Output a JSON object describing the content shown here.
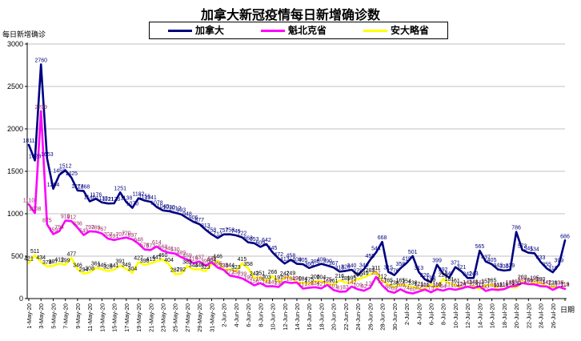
{
  "title": "加拿大新冠疫情每日新增确诊数",
  "y_axis_title": "每日新增确诊",
  "x_axis_title": "日期",
  "legend": {
    "canada_label": "加拿大",
    "quebec_label": "魁北克省",
    "ontario_label": "安大略省"
  },
  "colors": {
    "canada": "#000080",
    "quebec": "#FF00FF",
    "ontario": "#FFFF00",
    "canada_label": "#000080",
    "quebec_label": "#993366",
    "ontario_label": "#000000",
    "gridline": "#c0c0c0",
    "axis": "#000000",
    "background": "#ffffff"
  },
  "chart_data": {
    "type": "line",
    "title": "加拿大新冠疫情每日新增确诊数",
    "xlabel": "日期",
    "ylabel": "每日新增确诊",
    "ylim": [
      0,
      3000
    ],
    "ytick_step": 500,
    "xtick_every": 2,
    "grid": true,
    "legend_position": "top",
    "x": [
      "1-May-20",
      "2-May-20",
      "3-May-20",
      "4-May-20",
      "5-May-20",
      "6-May-20",
      "7-May-20",
      "8-May-20",
      "9-May-20",
      "10-May-20",
      "11-May-20",
      "12-May-20",
      "13-May-20",
      "14-May-20",
      "15-May-20",
      "16-May-20",
      "17-May-20",
      "18-May-20",
      "19-May-20",
      "20-May-20",
      "21-May-20",
      "22-May-20",
      "23-May-20",
      "24-May-20",
      "25-May-20",
      "26-May-20",
      "27-May-20",
      "28-May-20",
      "29-May-20",
      "30-May-20",
      "31-May-20",
      "1-Jun-20",
      "2-Jun-20",
      "3-Jun-20",
      "4-Jun-20",
      "5-Jun-20",
      "6-Jun-20",
      "7-Jun-20",
      "8-Jun-20",
      "9-Jun-20",
      "10-Jun-20",
      "11-Jun-20",
      "12-Jun-20",
      "13-Jun-20",
      "14-Jun-20",
      "15-Jun-20",
      "16-Jun-20",
      "17-Jun-20",
      "18-Jun-20",
      "19-Jun-20",
      "20-Jun-20",
      "21-Jun-20",
      "22-Jun-20",
      "23-Jun-20",
      "24-Jun-20",
      "25-Jun-20",
      "26-Jun-20",
      "27-Jun-20",
      "28-Jun-20",
      "29-Jun-20",
      "30-Jun-20",
      "1-Jul-20",
      "2-Jul-20",
      "3-Jul-20",
      "4-Jul-20",
      "5-Jul-20",
      "6-Jul-20",
      "7-Jul-20",
      "8-Jul-20",
      "9-Jul-20",
      "10-Jul-20",
      "11-Jul-20",
      "12-Jul-20",
      "13-Jul-20",
      "14-Jul-20",
      "15-Jul-20",
      "16-Jul-20",
      "17-Jul-20",
      "18-Jul-20",
      "19-Jul-20",
      "20-Jul-20",
      "21-Jul-20",
      "22-Jul-20",
      "23-Jul-20",
      "24-Jul-20",
      "25-Jul-20",
      "26-Jul-20",
      "27-Jul-20",
      "28-Jul-20"
    ],
    "series": [
      {
        "name": "加拿大",
        "color": "#000080",
        "label_color": "#000080",
        "values": [
          1811,
          1628,
          2760,
          1653,
          1294,
          1458,
          1512,
          1425,
          1274,
          1268,
          1146,
          1176,
          1133,
          1121,
          1123,
          1251,
          1138,
          1070,
          1182,
          1156,
          1141,
          1078,
          1040,
          1030,
          1012,
          993,
          948,
          906,
          877,
          813,
          758,
          713,
          757,
          758,
          745,
          722,
          663,
          653,
          609,
          642,
          545,
          472,
          413,
          458,
          409,
          405,
          360,
          386,
          409,
          390,
          367,
          318,
          326,
          340,
          279,
          346,
          455,
          544,
          668,
          315,
          276,
          358,
          419,
          501,
          313,
          226,
          192,
          399,
          292,
          247,
          371,
          321,
          242,
          243,
          565,
          437,
          405,
          343,
          330,
          339,
          786,
          573,
          541,
          534,
          433,
          355,
          310,
          399,
          686
        ]
      },
      {
        "name": "魁北克省",
        "color": "#FF00FF",
        "label_color": "#993366",
        "values": [
          1110,
          1008,
          2209,
          875,
          759,
          794,
          919,
          912,
          836,
          749,
          793,
          789,
          767,
          707,
          691,
          707,
          720,
          697,
          648,
          578,
          573,
          614,
          563,
          541,
          530,
          489,
          459,
          419,
          437,
          390,
          426,
          365,
          338,
          271,
          258,
          239,
          199,
          156,
          182,
          144,
          145,
          138,
          197,
          184,
          190,
          117,
          128,
          134,
          121,
          161,
          101,
          81,
          83,
          142,
          109,
          92,
          127,
          257,
          157,
          88,
          69,
          109,
          74,
          60,
          82,
          108,
          75,
          109,
          94,
          117,
          104,
          120,
          141,
          124,
          143,
          90,
          109,
          102,
          111,
          143,
          150,
          183,
          171,
          168,
          145,
          142,
          103,
          138,
          114
        ]
      },
      {
        "name": "安大略省",
        "color": "#FFFF00",
        "label_color": "#000000",
        "values": [
          421,
          511,
          434,
          378,
          387,
          412,
          399,
          477,
          346,
          294,
          308,
          361,
          345,
          325,
          341,
          391,
          349,
          304,
          427,
          398,
          413,
          441,
          460,
          404,
          287,
          292,
          383,
          344,
          346,
          323,
          404,
          446,
          338,
          344,
          323,
          415,
          358,
          243,
          251,
          203,
          266,
          197,
          247,
          249,
          190,
          184,
          175,
          206,
          204,
          175,
          161,
          216,
          189,
          195,
          230,
          249,
          283,
          311,
          212,
          165,
          138,
          165,
          154,
          138,
          121,
          111,
          170,
          118,
          229,
          181,
          161,
          124,
          143,
          148,
          111,
          157,
          165,
          111,
          116,
          135,
          130,
          203,
          166,
          195,
          180,
          142,
          139,
          135,
          119
        ]
      }
    ]
  }
}
